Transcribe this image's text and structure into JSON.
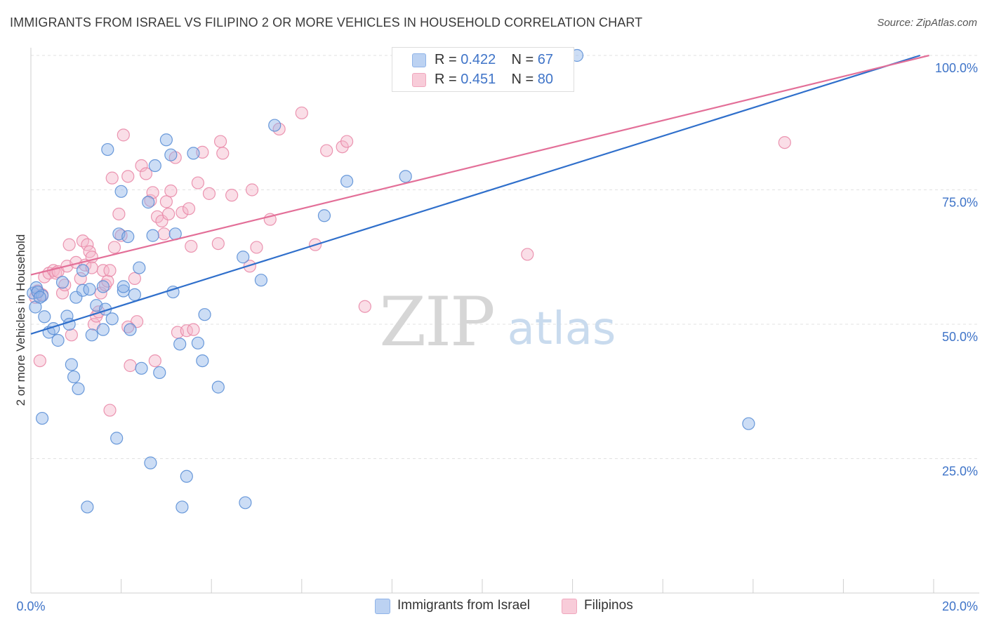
{
  "title": "IMMIGRANTS FROM ISRAEL VS FILIPINO 2 OR MORE VEHICLES IN HOUSEHOLD CORRELATION CHART",
  "source": "Source: ZipAtlas.com",
  "watermark": {
    "zip": "ZIP",
    "atlas": "atlas"
  },
  "legend_top": [
    {
      "r_label": "R =",
      "r_value": "0.422",
      "n_label": "N =",
      "n_value": "67"
    },
    {
      "r_label": "R =",
      "r_value": "0.451",
      "n_label": "N =",
      "n_value": "80"
    }
  ],
  "chart_data": {
    "type": "scatter",
    "title": "IMMIGRANTS FROM ISRAEL VS FILIPINO 2 OR MORE VEHICLES IN HOUSEHOLD CORRELATION CHART",
    "xlabel": "",
    "ylabel": "2 or more Vehicles in Household",
    "xlim": [
      0,
      20
    ],
    "ylim": [
      0,
      100
    ],
    "x_tick_labels": [
      "0.0%",
      "20.0%"
    ],
    "y_tick_labels": [
      "25.0%",
      "50.0%",
      "75.0%",
      "100.0%"
    ],
    "y_ticks": [
      25,
      50,
      75,
      100
    ],
    "grid": true,
    "legend_position": "bottom",
    "series": [
      {
        "name": "Immigrants from Israel",
        "color": "#8fb3e8",
        "edge": "#5b8fd6",
        "line_color": "#2f6fcb",
        "trend": [
          [
            0,
            48.2
          ],
          [
            19.7,
            100
          ]
        ],
        "points": [
          [
            0.05,
            55.8
          ],
          [
            0.1,
            53.2
          ],
          [
            0.12,
            56.8
          ],
          [
            0.25,
            55.3
          ],
          [
            0.3,
            51.4
          ],
          [
            0.25,
            32.5
          ],
          [
            0.4,
            48.5
          ],
          [
            0.5,
            49.2
          ],
          [
            0.6,
            47.0
          ],
          [
            0.7,
            57.8
          ],
          [
            0.8,
            51.5
          ],
          [
            0.85,
            50.0
          ],
          [
            0.9,
            42.5
          ],
          [
            0.95,
            40.2
          ],
          [
            1.0,
            55.0
          ],
          [
            1.05,
            38.0
          ],
          [
            1.15,
            56.3
          ],
          [
            1.15,
            60.0
          ],
          [
            1.25,
            16.0
          ],
          [
            1.3,
            56.5
          ],
          [
            1.35,
            48.0
          ],
          [
            1.45,
            53.5
          ],
          [
            1.6,
            49.0
          ],
          [
            1.6,
            57.0
          ],
          [
            1.65,
            52.8
          ],
          [
            1.7,
            82.5
          ],
          [
            1.8,
            51.0
          ],
          [
            1.9,
            28.8
          ],
          [
            1.95,
            66.8
          ],
          [
            2.0,
            74.7
          ],
          [
            2.05,
            56.2
          ],
          [
            2.15,
            66.3
          ],
          [
            2.2,
            49.0
          ],
          [
            2.3,
            55.5
          ],
          [
            2.4,
            60.5
          ],
          [
            2.45,
            41.8
          ],
          [
            2.6,
            72.7
          ],
          [
            2.65,
            24.2
          ],
          [
            2.7,
            66.5
          ],
          [
            2.75,
            79.5
          ],
          [
            2.85,
            41.0
          ],
          [
            3.0,
            84.3
          ],
          [
            3.1,
            81.5
          ],
          [
            3.2,
            66.8
          ],
          [
            3.3,
            46.3
          ],
          [
            3.35,
            16.0
          ],
          [
            3.45,
            21.7
          ],
          [
            3.6,
            81.8
          ],
          [
            3.7,
            46.5
          ],
          [
            3.8,
            43.2
          ],
          [
            3.85,
            51.8
          ],
          [
            4.15,
            38.3
          ],
          [
            4.7,
            62.5
          ],
          [
            4.75,
            16.8
          ],
          [
            5.1,
            58.2
          ],
          [
            5.4,
            87.0
          ],
          [
            6.5,
            70.2
          ],
          [
            7.0,
            76.6
          ],
          [
            8.3,
            77.5
          ],
          [
            10.4,
            99.8
          ],
          [
            10.9,
            99.6
          ],
          [
            12.1,
            100.0
          ],
          [
            15.9,
            31.5
          ],
          [
            0.15,
            56.0
          ],
          [
            0.2,
            55.0
          ],
          [
            2.05,
            57.0
          ],
          [
            3.15,
            56.0
          ]
        ]
      },
      {
        "name": "Filipinos",
        "color": "#f4b6c9",
        "edge": "#e98aa8",
        "line_color": "#e36f98",
        "trend": [
          [
            0,
            59.2
          ],
          [
            19.9,
            100
          ]
        ],
        "points": [
          [
            0.1,
            55.0
          ],
          [
            0.15,
            56.2
          ],
          [
            0.2,
            43.2
          ],
          [
            0.3,
            58.8
          ],
          [
            0.4,
            59.5
          ],
          [
            0.5,
            60.0
          ],
          [
            0.55,
            59.5
          ],
          [
            0.6,
            59.8
          ],
          [
            0.7,
            55.8
          ],
          [
            0.75,
            57.3
          ],
          [
            0.8,
            60.8
          ],
          [
            0.85,
            64.8
          ],
          [
            0.9,
            48.0
          ],
          [
            1.0,
            61.5
          ],
          [
            1.1,
            58.5
          ],
          [
            1.15,
            65.5
          ],
          [
            1.2,
            61.0
          ],
          [
            1.25,
            64.8
          ],
          [
            1.3,
            63.5
          ],
          [
            1.35,
            62.5
          ],
          [
            1.4,
            50.0
          ],
          [
            1.45,
            51.5
          ],
          [
            1.5,
            52.3
          ],
          [
            1.55,
            55.8
          ],
          [
            1.6,
            60.0
          ],
          [
            1.65,
            57.3
          ],
          [
            1.7,
            58.0
          ],
          [
            1.75,
            60.0
          ],
          [
            1.75,
            34.0
          ],
          [
            1.8,
            77.2
          ],
          [
            1.85,
            64.3
          ],
          [
            1.95,
            70.5
          ],
          [
            2.0,
            66.5
          ],
          [
            2.05,
            85.2
          ],
          [
            2.15,
            77.5
          ],
          [
            2.2,
            42.3
          ],
          [
            2.3,
            58.5
          ],
          [
            2.35,
            50.5
          ],
          [
            2.45,
            79.5
          ],
          [
            2.55,
            78.0
          ],
          [
            2.65,
            73.0
          ],
          [
            2.7,
            74.5
          ],
          [
            2.75,
            43.2
          ],
          [
            2.8,
            70.0
          ],
          [
            2.9,
            69.2
          ],
          [
            2.95,
            66.8
          ],
          [
            3.0,
            72.8
          ],
          [
            3.05,
            70.5
          ],
          [
            3.1,
            74.8
          ],
          [
            3.2,
            81.0
          ],
          [
            3.25,
            48.5
          ],
          [
            3.35,
            70.8
          ],
          [
            3.45,
            48.8
          ],
          [
            3.5,
            71.5
          ],
          [
            3.55,
            64.5
          ],
          [
            3.6,
            49.0
          ],
          [
            3.7,
            76.3
          ],
          [
            3.8,
            82.0
          ],
          [
            3.95,
            74.3
          ],
          [
            4.15,
            65.0
          ],
          [
            4.2,
            84.0
          ],
          [
            4.25,
            81.8
          ],
          [
            4.45,
            74.0
          ],
          [
            4.85,
            60.8
          ],
          [
            4.9,
            75.0
          ],
          [
            5.0,
            64.3
          ],
          [
            5.3,
            69.5
          ],
          [
            5.5,
            86.3
          ],
          [
            6.0,
            89.3
          ],
          [
            6.3,
            64.8
          ],
          [
            6.55,
            82.3
          ],
          [
            6.9,
            83.0
          ],
          [
            7.0,
            84.0
          ],
          [
            7.4,
            53.3
          ],
          [
            11.0,
            63.0
          ],
          [
            11.6,
            99.5
          ],
          [
            16.7,
            83.8
          ],
          [
            0.25,
            55.5
          ],
          [
            1.35,
            60.5
          ],
          [
            2.15,
            49.5
          ]
        ]
      }
    ]
  },
  "bottom_legend": [
    {
      "label": "Immigrants from Israel"
    },
    {
      "label": "Filipinos"
    }
  ]
}
